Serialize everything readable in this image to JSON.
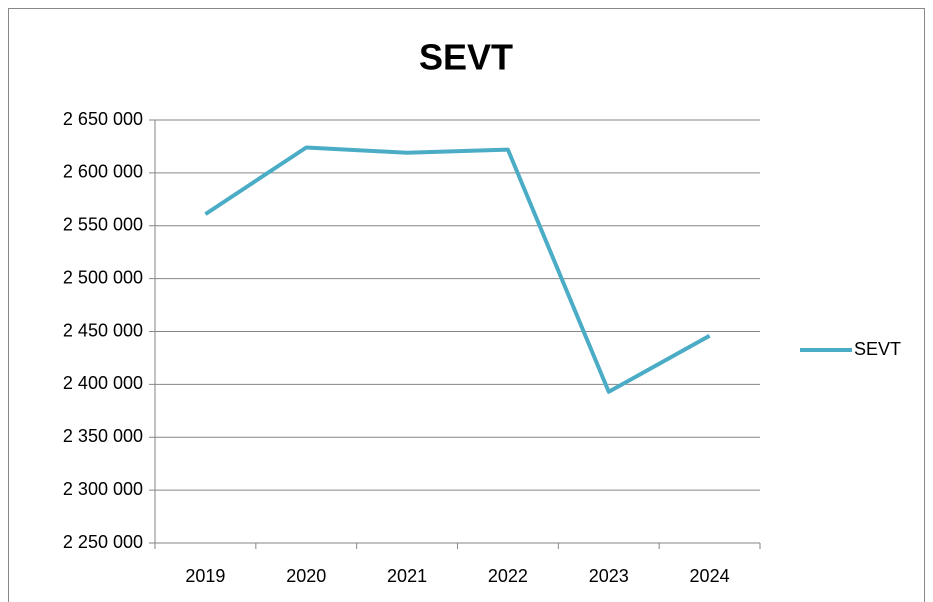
{
  "chart_data": {
    "type": "line",
    "title": "SEVT",
    "categories": [
      "2019",
      "2020",
      "2021",
      "2022",
      "2023",
      "2024"
    ],
    "series": [
      {
        "name": "SEVT",
        "color": "#4bacc6",
        "values": [
          2561000,
          2624000,
          2619000,
          2622000,
          2393000,
          2446000
        ]
      }
    ],
    "ylim": [
      2250000,
      2650000
    ],
    "yticks": [
      {
        "value": 2250000,
        "label": "2 250 000"
      },
      {
        "value": 2300000,
        "label": "2 300 000"
      },
      {
        "value": 2350000,
        "label": "2 350 000"
      },
      {
        "value": 2400000,
        "label": "2 400 000"
      },
      {
        "value": 2450000,
        "label": "2 450 000"
      },
      {
        "value": 2500000,
        "label": "2 500 000"
      },
      {
        "value": 2550000,
        "label": "2 550 000"
      },
      {
        "value": 2600000,
        "label": "2 600 000"
      },
      {
        "value": 2650000,
        "label": "2 650 000"
      }
    ],
    "grid": true,
    "legend": "right"
  }
}
